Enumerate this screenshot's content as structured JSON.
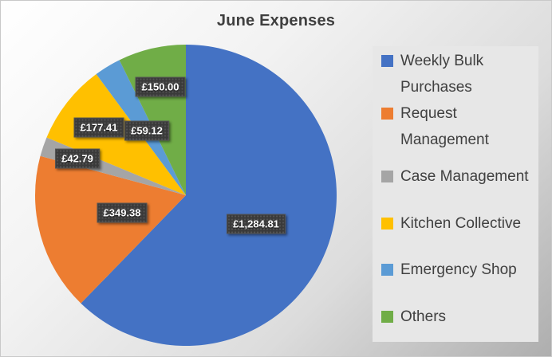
{
  "chart_data": {
    "type": "pie",
    "title": "June Expenses",
    "currency": "£",
    "legend_position": "right",
    "direction": "clockwise",
    "start_angle_deg": 0,
    "slices": [
      {
        "name": "Weekly Bulk Purchases",
        "legend_lines": [
          "Weekly Bulk",
          "Purchases"
        ],
        "value": 1284.81,
        "data_label": "£1,284.81",
        "color": "#4472C4"
      },
      {
        "name": "Request Management",
        "legend_lines": [
          "Request",
          "Management"
        ],
        "value": 349.38,
        "data_label": "£349.38",
        "color": "#ED7D31"
      },
      {
        "name": "Case Management",
        "legend_lines": [
          "Case Management"
        ],
        "value": 42.79,
        "data_label": "£42.79",
        "color": "#A5A5A5"
      },
      {
        "name": "Kitchen Collective",
        "legend_lines": [
          "Kitchen Collective"
        ],
        "value": 177.41,
        "data_label": "£177.41",
        "color": "#FFC000"
      },
      {
        "name": "Emergency Shop",
        "legend_lines": [
          "Emergency Shop"
        ],
        "value": 59.12,
        "data_label": "£59.12",
        "color": "#5B9BD5"
      },
      {
        "name": "Others",
        "legend_lines": [
          "Others"
        ],
        "value": 150.0,
        "data_label": "£150.00",
        "color": "#70AD47"
      }
    ]
  }
}
